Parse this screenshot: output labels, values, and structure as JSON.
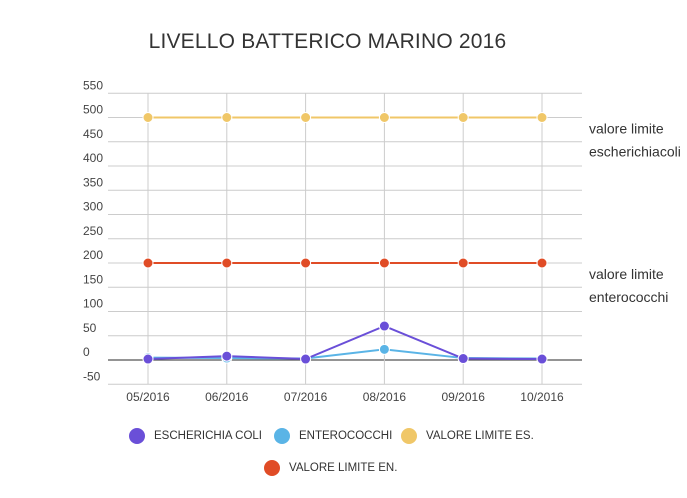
{
  "chart_data": {
    "type": "line",
    "title": "LIVELLO BATTERICO MARINO 2016",
    "categories": [
      "05/2016",
      "06/2016",
      "07/2016",
      "08/2016",
      "09/2016",
      "10/2016"
    ],
    "ylim": [
      -50,
      550
    ],
    "yticks": [
      550,
      500,
      450,
      400,
      350,
      300,
      250,
      200,
      150,
      100,
      50,
      0,
      -50
    ],
    "grid": true,
    "legend_position": "bottom",
    "series": [
      {
        "name": "ESCHERICHIA COLI",
        "color": "#6a4fd8",
        "values": [
          2,
          8,
          2,
          70,
          3,
          2
        ]
      },
      {
        "name": "ENTEROCOCCHI",
        "color": "#5ab4e6",
        "values": [
          5,
          4,
          3,
          22,
          4,
          3
        ]
      },
      {
        "name": "VALORE LIMITE ES.",
        "color": "#f0c768",
        "values": [
          500,
          500,
          500,
          500,
          500,
          500
        ]
      },
      {
        "name": "VALORE LIMITE EN.",
        "color": "#e04c26",
        "values": [
          200,
          200,
          200,
          200,
          200,
          200
        ]
      }
    ],
    "annotations": [
      {
        "lines": [
          "valore limite",
          "escherichiacoli"
        ],
        "value": 500
      },
      {
        "lines": [
          "valore limite",
          "enterococchi"
        ],
        "value": 200
      }
    ]
  }
}
